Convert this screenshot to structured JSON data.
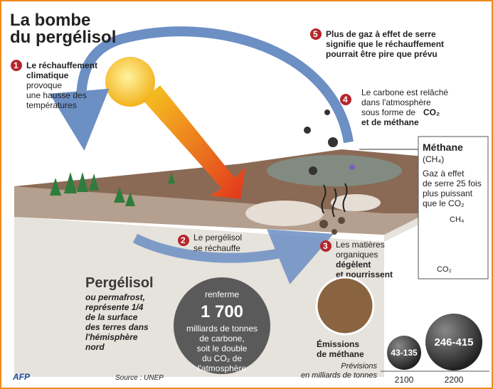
{
  "title": {
    "lines": [
      "La bombe",
      "du pergélisol"
    ]
  },
  "steps": [
    {
      "number": "1",
      "bold": [
        "Le réchauffement",
        "climatique"
      ],
      "text": [
        "provoque",
        "une hausse des",
        "températures"
      ]
    },
    {
      "number": "2",
      "text": [
        "Le pergélisol",
        "se réchauffe"
      ]
    },
    {
      "number": "3",
      "text": [
        "Les matières",
        "organiques"
      ],
      "bold": [
        "dégèlent",
        "et pourrissent"
      ]
    },
    {
      "number": "4",
      "text": [
        "Le carbone est relâché",
        "dans l'atmosphère",
        "sous forme de"
      ],
      "bold": [
        "CO₂",
        "et de méthane"
      ]
    },
    {
      "number": "5",
      "bold": [
        "Plus de gaz à effet de serre",
        "signifie que le réchauffement",
        "pourrait être pire que prévu"
      ]
    }
  ],
  "methane_box": {
    "title": "Méthane",
    "formula": "(CH₄)",
    "text": [
      "Gaz à effet",
      "de serre 25 fois",
      "plus puissant",
      "que le CO₂"
    ],
    "labels": [
      "CH₄",
      "CO₂"
    ]
  },
  "permafrost": {
    "title": "Pergélisol",
    "text": [
      "ou permafrost,",
      "représente 1/4",
      "de la surface",
      "des terres dans",
      "l'hémisphère",
      "nord"
    ]
  },
  "carbon": {
    "top": "renferme",
    "amount": "1 700",
    "text": [
      "milliards de tonnes",
      "de carbone,",
      "soit le double",
      "du CO₂ de",
      "l'atmosphère"
    ]
  },
  "emissions": {
    "title": [
      "Émissions",
      "de méthane"
    ],
    "subtitle": [
      "Prévisions",
      "en milliards de tonnes"
    ],
    "bubbles": [
      {
        "label": "43-135",
        "year": "2100"
      },
      {
        "label": "246-415",
        "year": "2200"
      }
    ]
  },
  "footer": {
    "agency": "AFP",
    "source": "Source : UNEP"
  }
}
